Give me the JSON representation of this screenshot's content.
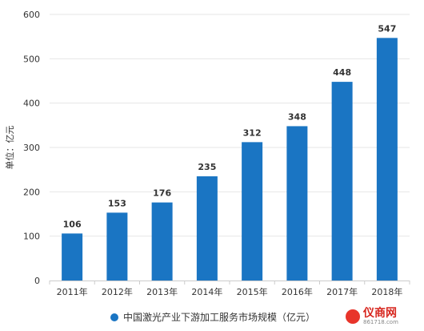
{
  "chart_data": {
    "type": "bar",
    "categories": [
      "2011年",
      "2012年",
      "2013年",
      "2014年",
      "2015年",
      "2016年",
      "2017年",
      "2018年"
    ],
    "values": [
      106,
      153,
      176,
      235,
      312,
      348,
      448,
      547
    ],
    "ylabel": "单位：亿元",
    "ylim": [
      0,
      600
    ],
    "yticks": [
      0,
      100,
      200,
      300,
      400,
      500,
      600
    ],
    "grid": "horizontal",
    "legend_position": "bottom",
    "series_name": "中国激光产业下游加工服务市场规模（亿元）",
    "color": "#1a75c3"
  },
  "logo": {
    "name": "仪商网",
    "url": "861718.com"
  }
}
